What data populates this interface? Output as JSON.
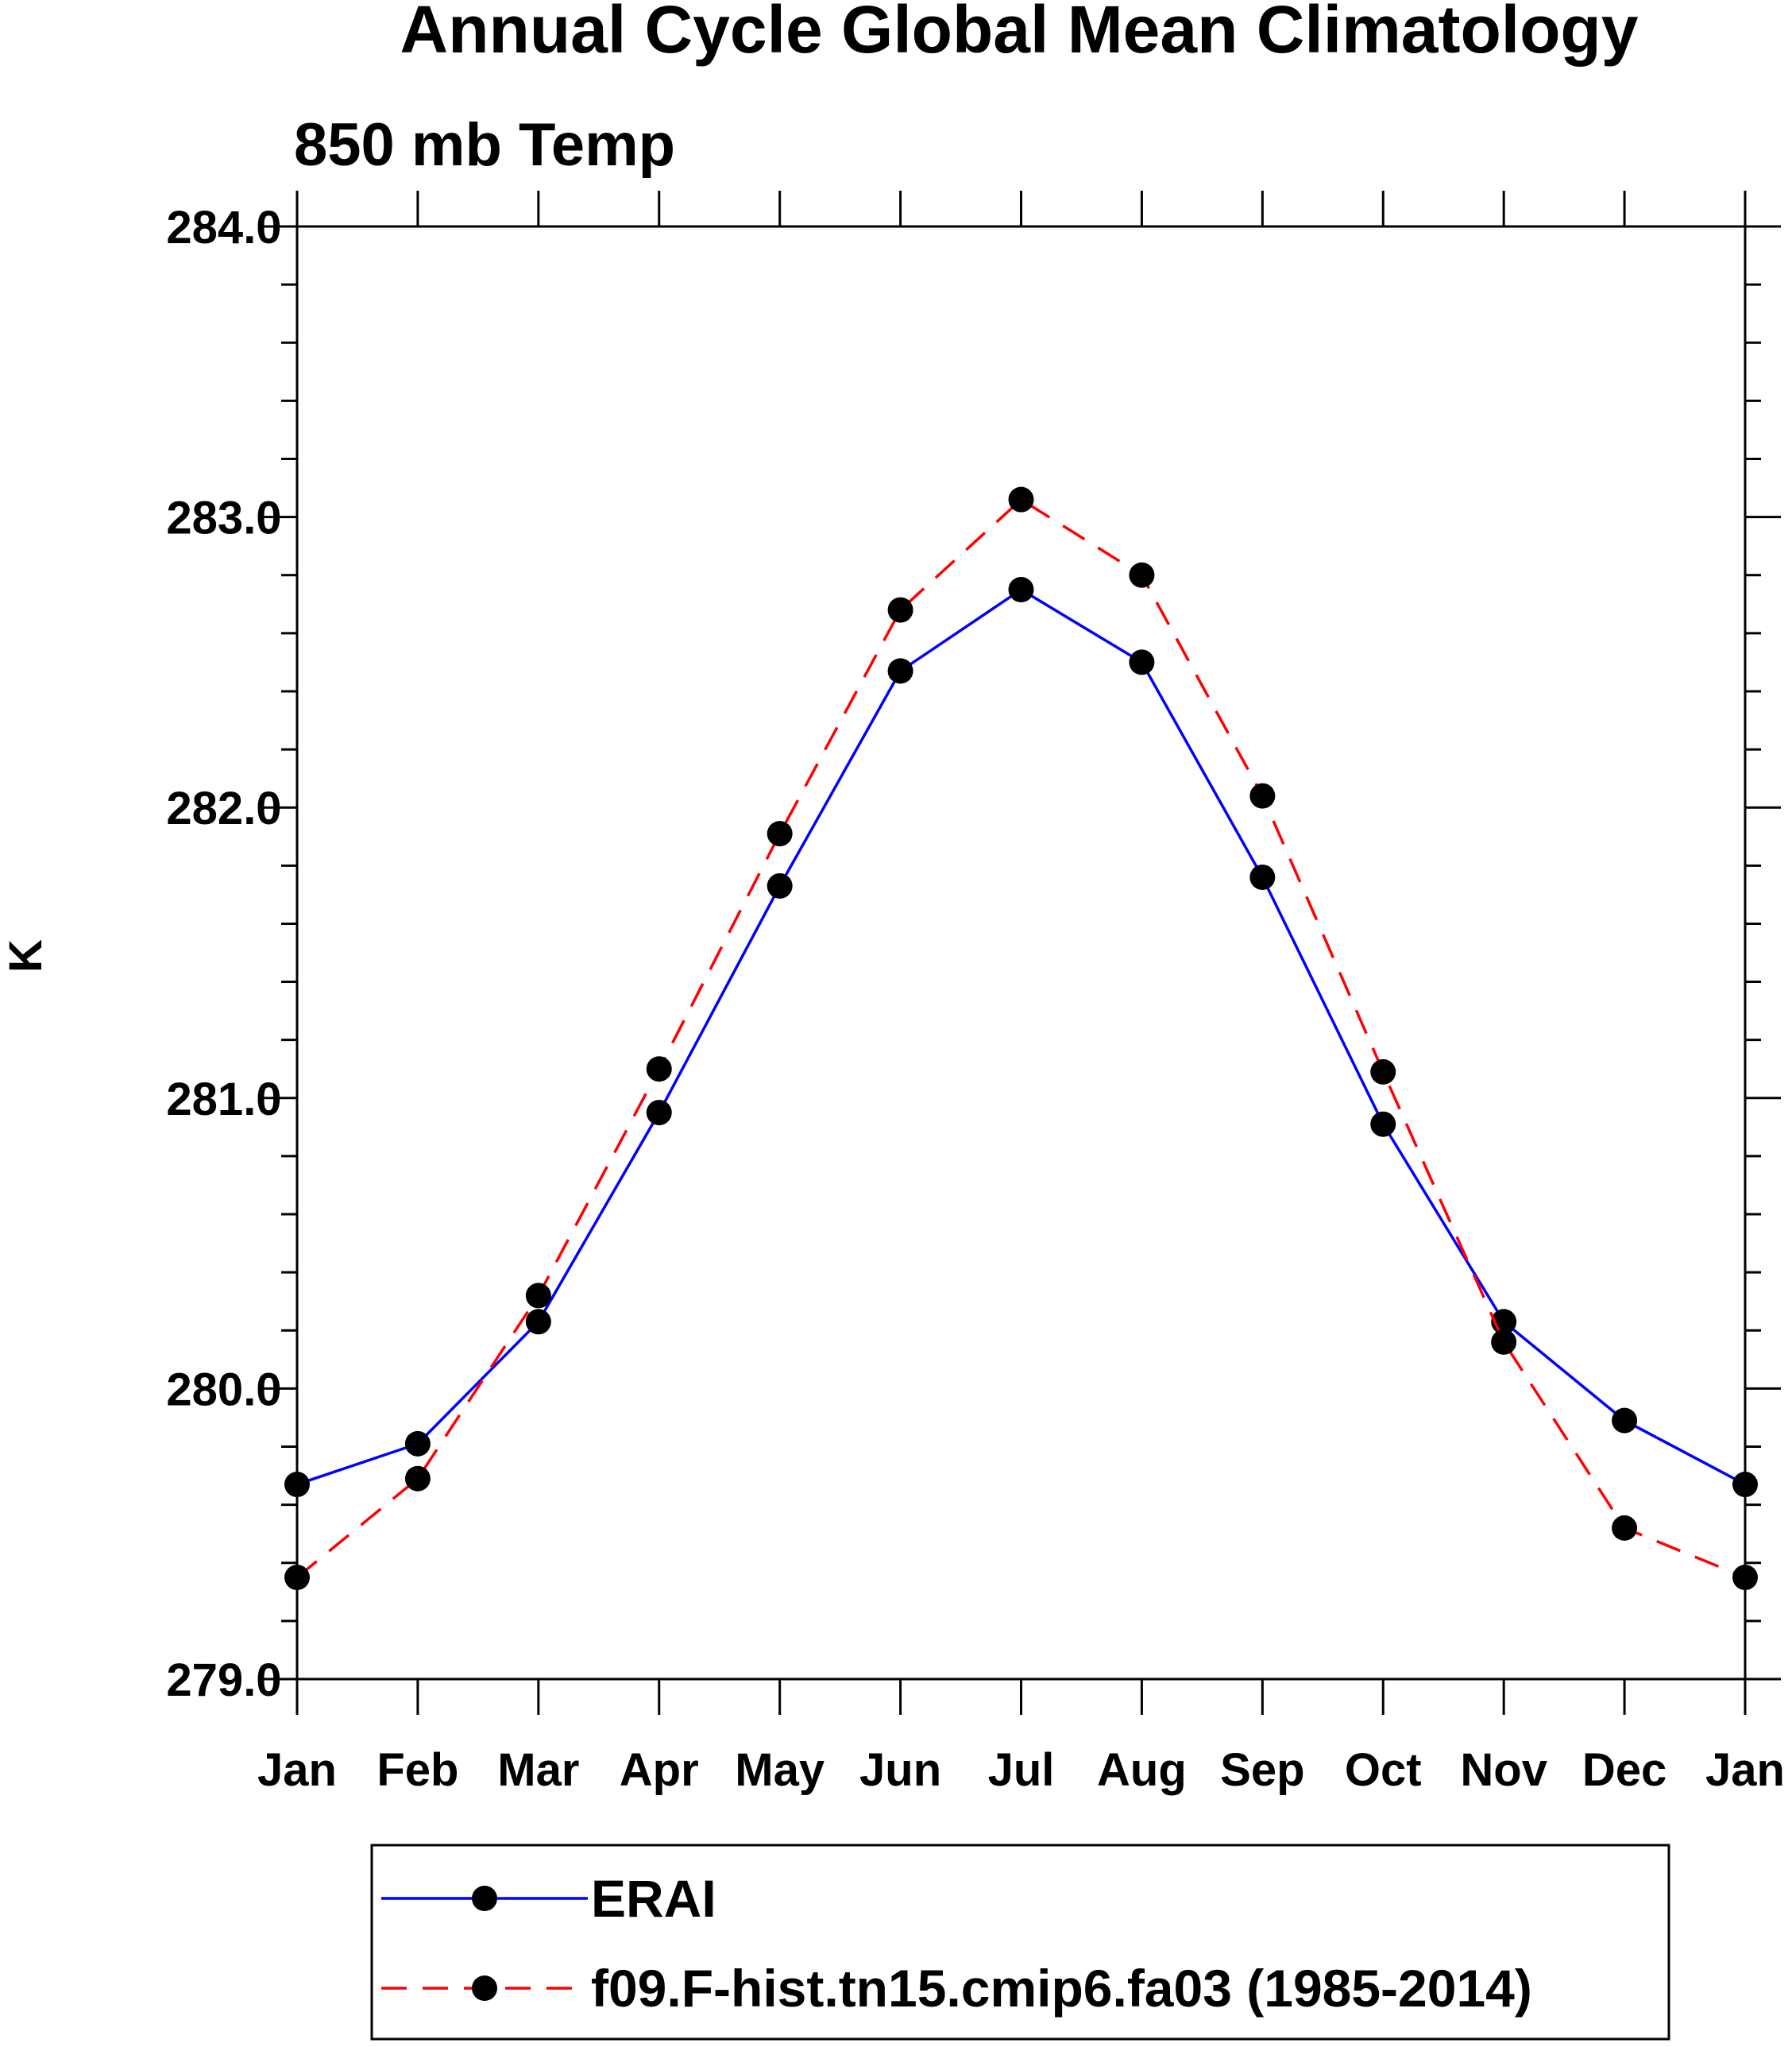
{
  "chart_data": {
    "type": "line",
    "title": "Annual Cycle Global Mean Climatology",
    "subtitle": "850 mb Temp",
    "ylabel": "K",
    "xlabel": "",
    "categories": [
      "Jan",
      "Feb",
      "Mar",
      "Apr",
      "May",
      "Jun",
      "Jul",
      "Aug",
      "Sep",
      "Oct",
      "Nov",
      "Dec",
      "Jan"
    ],
    "ylim": [
      279.0,
      284.0
    ],
    "yticks": [
      "279.0",
      "280.0",
      "281.0",
      "282.0",
      "283.0",
      "284.0"
    ],
    "grid": false,
    "legend_position": "bottom",
    "series": [
      {
        "name": "ERAI",
        "color": "#0000ff",
        "dash": "solid",
        "values": [
          279.67,
          279.81,
          280.23,
          280.95,
          281.73,
          282.47,
          282.75,
          282.5,
          281.76,
          280.91,
          280.23,
          279.89,
          279.67
        ]
      },
      {
        "name": "f09.F-hist.tn15.cmip6.fa03 (1985-2014)",
        "color": "#ff0000",
        "dash": "dashed",
        "values": [
          279.35,
          279.69,
          280.32,
          281.1,
          281.91,
          282.68,
          283.06,
          282.8,
          282.04,
          281.09,
          280.16,
          279.52,
          279.35
        ]
      }
    ]
  }
}
